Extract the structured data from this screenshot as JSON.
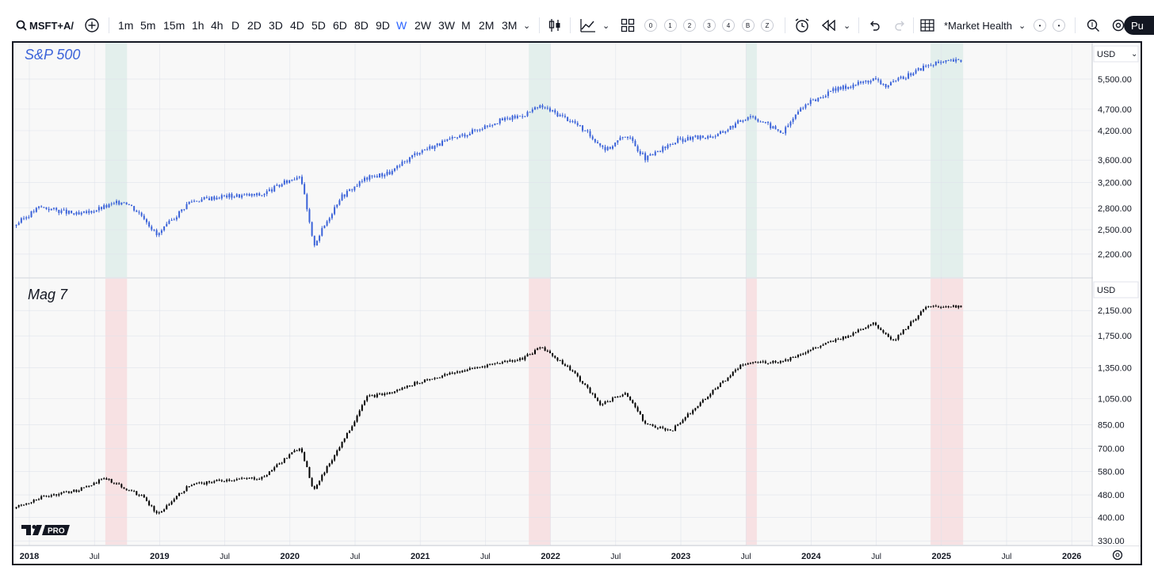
{
  "toolbar": {
    "symbol": "MSFT+A/",
    "intervals": [
      "1m",
      "5m",
      "15m",
      "1h",
      "4h",
      "D",
      "2D",
      "3D",
      "4D",
      "5D",
      "6D",
      "8D",
      "9D",
      "W",
      "2W",
      "3W",
      "M",
      "2M",
      "3M"
    ],
    "active_interval": "W",
    "quick_buttons": [
      "0",
      "1",
      "2",
      "3",
      "4",
      "B",
      "Z"
    ],
    "layout_name": "*Market Health",
    "extra_dots": [
      "•",
      "•"
    ],
    "publish_label": "Pu"
  },
  "currency": "USD",
  "logo_text": "PRO",
  "colors": {
    "sp_candle": "#3b63d9",
    "mag_candle": "#000000",
    "green_band": "#e3efec",
    "red_band": "#f7e1e3",
    "grid": "#e0e3eb",
    "bg": "#f8f8f8"
  },
  "time_axis": [
    "2018",
    "Jul",
    "2019",
    "Jul",
    "2020",
    "Jul",
    "2021",
    "Jul",
    "2022",
    "Jul",
    "2023",
    "Jul",
    "2024",
    "Jul",
    "2025",
    "Jul",
    "2026"
  ],
  "chart_data": [
    {
      "type": "candlestick",
      "title": "S&P 500",
      "scale": "log",
      "ylim": [
        1950,
        6600
      ],
      "y_ticks": [
        "5,500.00",
        "4,700.00",
        "4,200.00",
        "3,600.00",
        "3,200.00",
        "2,800.00",
        "2,500.00",
        "2,200.00"
      ],
      "highlight_ranges": [
        [
          "2018-08",
          "2018-10"
        ],
        [
          "2021-11",
          "2022-01"
        ],
        [
          "2023-07",
          "2023-08"
        ],
        [
          "2024-12",
          "2025-03"
        ]
      ],
      "x_start": 2017.9,
      "x_end": 2025.15,
      "series": [
        {
          "name": "S&P 500",
          "x": [
            2017.9,
            2018.1,
            2018.4,
            2018.75,
            2018.9,
            2019.0,
            2019.25,
            2019.5,
            2019.8,
            2020.1,
            2020.2,
            2020.4,
            2020.6,
            2020.8,
            2021.0,
            2021.3,
            2021.6,
            2021.8,
            2021.95,
            2022.2,
            2022.45,
            2022.6,
            2022.75,
            2023.0,
            2023.3,
            2023.55,
            2023.8,
            2023.95,
            2024.2,
            2024.5,
            2024.6,
            2024.9,
            2025.1
          ],
          "values": [
            2550,
            2820,
            2700,
            2910,
            2670,
            2420,
            2900,
            2980,
            3000,
            3340,
            2300,
            2950,
            3270,
            3380,
            3760,
            4050,
            4400,
            4550,
            4770,
            4390,
            3800,
            4120,
            3620,
            4000,
            4100,
            4560,
            4150,
            4770,
            5200,
            5500,
            5300,
            5900,
            6050
          ]
        }
      ]
    },
    {
      "type": "candlestick",
      "title": "Mag 7",
      "scale": "log",
      "ylim": [
        320,
        2750
      ],
      "y_ticks": [
        "2,150.00",
        "1,750.00",
        "1,350.00",
        "1,050.00",
        "850.00",
        "700.00",
        "580.00",
        "480.00",
        "400.00",
        "330.00"
      ],
      "highlight_ranges": [
        [
          "2018-08",
          "2018-10"
        ],
        [
          "2021-11",
          "2022-01"
        ],
        [
          "2023-07",
          "2023-08"
        ],
        [
          "2024-12",
          "2025-03"
        ]
      ],
      "x_start": 2017.9,
      "x_end": 2025.15,
      "series": [
        {
          "name": "Mag 7",
          "x": [
            2017.9,
            2018.1,
            2018.4,
            2018.6,
            2018.9,
            2019.0,
            2019.25,
            2019.5,
            2019.8,
            2020.1,
            2020.2,
            2020.5,
            2020.6,
            2020.8,
            2021.0,
            2021.3,
            2021.6,
            2021.8,
            2021.95,
            2022.2,
            2022.4,
            2022.6,
            2022.75,
            2022.95,
            2023.2,
            2023.5,
            2023.8,
            2024.0,
            2024.3,
            2024.5,
            2024.65,
            2024.9,
            2025.1
          ],
          "values": [
            430,
            470,
            500,
            550,
            470,
            410,
            520,
            540,
            550,
            710,
            500,
            850,
            1060,
            1100,
            1200,
            1300,
            1400,
            1450,
            1600,
            1300,
            1000,
            1100,
            850,
            810,
            1050,
            1400,
            1420,
            1550,
            1750,
            1950,
            1680,
            2200,
            2230
          ]
        }
      ]
    }
  ]
}
